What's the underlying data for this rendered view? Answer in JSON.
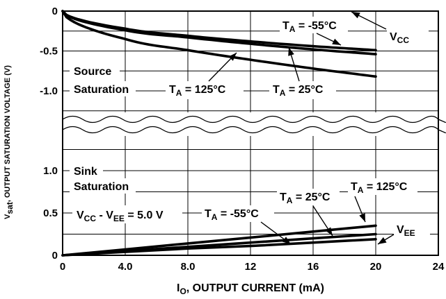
{
  "chart_data": {
    "type": "line",
    "x": [
      0,
      4,
      8,
      12,
      16,
      20
    ],
    "xlabel_main": "I",
    "xlabel_sub": "O",
    "xlabel_rest": ", OUTPUT CURRENT (mA)",
    "ylabel_main": "V",
    "ylabel_sub": "sat",
    "ylabel_rest": ", OUTPUT SATURATION VOLTAGE (V)",
    "xlim": [
      0,
      24
    ],
    "x_ticks": [
      "0",
      "4.0",
      "8.0",
      "12",
      "16",
      "20",
      "24"
    ],
    "top_panel": {
      "y_ticks": [
        "0",
        "-0.5",
        "-1.0"
      ],
      "label_line1": "Source",
      "label_line2": "Saturation",
      "supply_label_main": "V",
      "supply_label_sub": "CC",
      "series": [
        {
          "name": "T_A = -55°C",
          "y": [
            0,
            -0.22,
            -0.31,
            -0.38,
            -0.44,
            -0.49
          ]
        },
        {
          "name": "T_A = 25°C",
          "y": [
            0,
            -0.24,
            -0.33,
            -0.41,
            -0.48,
            -0.54
          ]
        },
        {
          "name": "T_A = 125°C",
          "y": [
            0,
            -0.35,
            -0.49,
            -0.61,
            -0.72,
            -0.82
          ]
        }
      ]
    },
    "bottom_panel": {
      "y_ticks": [
        "0",
        "0.5",
        "1.0"
      ],
      "label_line1": "Sink",
      "label_line2": "Saturation",
      "condition_a": "V",
      "condition_a_sub": "CC",
      "condition_b": " - V",
      "condition_b_sub": "EE",
      "condition_c": " = 5.0 V",
      "supply_label_main": "V",
      "supply_label_sub": "EE",
      "series": [
        {
          "name": "T_A = -55°C",
          "y": [
            0,
            0.04,
            0.08,
            0.11,
            0.15,
            0.19
          ]
        },
        {
          "name": "T_A = 25°C",
          "y": [
            0,
            0.05,
            0.1,
            0.15,
            0.2,
            0.25
          ]
        },
        {
          "name": "T_A = 125°C",
          "y": [
            0,
            0.07,
            0.14,
            0.21,
            0.28,
            0.35
          ]
        }
      ]
    },
    "temp_label_prefix": "T",
    "temp_label_sub": "A",
    "temp_labels": {
      "t55": " = -55°C",
      "t25": " = 25°C",
      "t125": " = 125°C"
    }
  }
}
